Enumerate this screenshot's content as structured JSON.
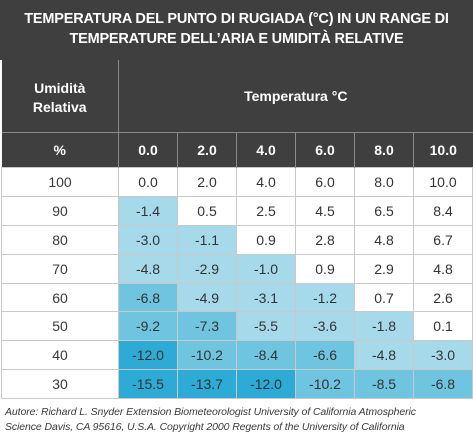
{
  "title": {
    "line1": "TEMPERATURA DEL PUNTO DI RUGIADA (°C) IN UN RANGE DI",
    "line2": "TEMPERATURE DELL’ARIA E UMIDITÀ RELATIVE"
  },
  "header": {
    "rh_label_line1": "Umidità",
    "rh_label_line2": "Relativa",
    "temp_label": "Temperatura °C",
    "rh_unit": "%",
    "temps": [
      "0.0",
      "2.0",
      "4.0",
      "6.0",
      "8.0",
      "10.0"
    ]
  },
  "rows": [
    {
      "rh": "100",
      "values": [
        "0.0",
        "2.0",
        "4.0",
        "6.0",
        "8.0",
        "10.0"
      ]
    },
    {
      "rh": "90",
      "values": [
        "-1.4",
        "0.5",
        "2.5",
        "4.5",
        "6.5",
        "8.4"
      ]
    },
    {
      "rh": "80",
      "values": [
        "-3.0",
        "-1.1",
        "0.9",
        "2.8",
        "4.8",
        "6.7"
      ]
    },
    {
      "rh": "70",
      "values": [
        "-4.8",
        "-2.9",
        "-1.0",
        "0.9",
        "2.9",
        "4.8"
      ]
    },
    {
      "rh": "60",
      "values": [
        "-6.8",
        "-4.9",
        "-3.1",
        "-1.2",
        "0.7",
        "2.6"
      ]
    },
    {
      "rh": "50",
      "values": [
        "-9.2",
        "-7.3",
        "-5.5",
        "-3.6",
        "-1.8",
        "0.1"
      ]
    },
    {
      "rh": "40",
      "values": [
        "-12.0",
        "-10.2",
        "-8.4",
        "-6.6",
        "-4.8",
        "-3.0"
      ]
    },
    {
      "rh": "30",
      "values": [
        "-15.5",
        "-13.7",
        "-12.0",
        "-10.2",
        "-8.5",
        "-6.8"
      ]
    }
  ],
  "colors": {
    "header_bg": "#3f3f3f",
    "shade_1": "#d9eef5",
    "shade_2": "#a6daea",
    "shade_3": "#6fc4e0",
    "shade_4": "#2eaad6",
    "white": "#ffffff"
  },
  "footer": {
    "line1": "Autore: Richard L. Snyder Extension Biometeorologist University of California Atmospheric",
    "line2": "Science Davis, CA 95616, U.S.A. Copyright 2000 Regents of the University of California"
  }
}
